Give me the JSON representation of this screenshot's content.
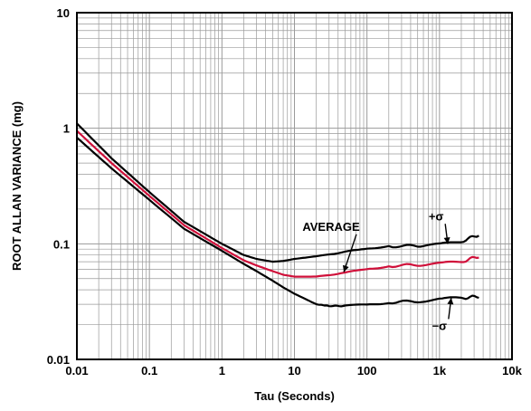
{
  "chart_data": {
    "type": "line",
    "xscale": "log",
    "yscale": "log",
    "xlim": [
      0.01,
      10000
    ],
    "ylim": [
      0.01,
      10
    ],
    "grid": true,
    "xlabel": "Tau (Seconds)",
    "ylabel": "ROOT ALLAN VARIANCE (mg)",
    "x_ticks": [
      "0.01",
      "0.1",
      "1",
      "10",
      "100",
      "1k",
      "10k"
    ],
    "y_ticks": [
      "0.01",
      "0.1",
      "1",
      "10"
    ],
    "series": [
      {
        "color": "#000000",
        "x": [
          0.01,
          0.03,
          0.1,
          0.3,
          1,
          2,
          3,
          5,
          7,
          10,
          20,
          50,
          100,
          200,
          500,
          1000,
          2000,
          3500
        ],
        "y": [
          1.1,
          0.55,
          0.28,
          0.155,
          0.1,
          0.08,
          0.074,
          0.07,
          0.071,
          0.074,
          0.078,
          0.085,
          0.092,
          0.095,
          0.096,
          0.098,
          0.105,
          0.12
        ]
      },
      {
        "color": "#d0103a",
        "x": [
          0.01,
          0.03,
          0.1,
          0.3,
          1,
          2,
          3,
          5,
          7,
          10,
          20,
          50,
          100,
          200,
          500,
          1000,
          2000,
          3500
        ],
        "y": [
          0.95,
          0.5,
          0.26,
          0.145,
          0.092,
          0.072,
          0.065,
          0.058,
          0.054,
          0.052,
          0.052,
          0.056,
          0.061,
          0.064,
          0.066,
          0.067,
          0.07,
          0.078
        ]
      },
      {
        "color": "#000000",
        "x": [
          0.01,
          0.03,
          0.1,
          0.3,
          1,
          2,
          3,
          5,
          7,
          10,
          20,
          30,
          50,
          100,
          200,
          500,
          1000,
          2000,
          3500
        ],
        "y": [
          0.83,
          0.45,
          0.24,
          0.135,
          0.087,
          0.067,
          0.058,
          0.048,
          0.042,
          0.037,
          0.03,
          0.029,
          0.029,
          0.03,
          0.031,
          0.032,
          0.033,
          0.034,
          0.035
        ]
      }
    ],
    "annotations": [
      {
        "text": "+σ",
        "x": 900,
        "y": 0.16,
        "arrow_to": [
          1300,
          0.1
        ]
      },
      {
        "text": "AVERAGE",
        "x": 32,
        "y": 0.13,
        "arrow_to": [
          48,
          0.057
        ]
      },
      {
        "text": "−σ",
        "x": 1000,
        "y": 0.018,
        "arrow_to": [
          1450,
          0.034
        ]
      }
    ]
  }
}
